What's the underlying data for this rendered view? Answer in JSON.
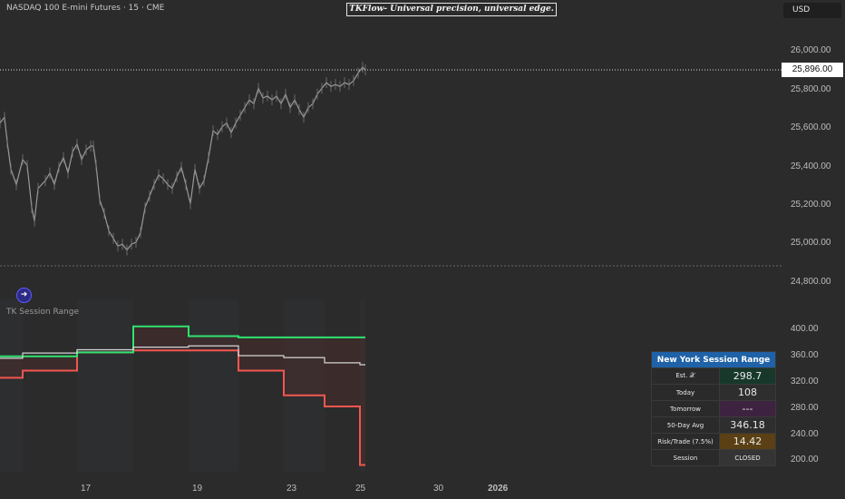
{
  "header": {
    "symbol": "NASDAQ 100 E-mini Futures · 15 · CME",
    "banner": "TKFlow- Universal precision, universal edge.",
    "currency": "USD"
  },
  "price_axis": {
    "current_price": "25,896.00",
    "labels": [
      "26,000.00",
      "25,800.00",
      "25,600.00",
      "25,400.00",
      "25,200.00",
      "25,000.00",
      "24,800.00"
    ]
  },
  "indicator": {
    "name": "TK Session Range",
    "icon": "arrow-circle-icon",
    "axis_labels": [
      "400.00",
      "360.00",
      "320.00",
      "280.00",
      "240.00",
      "200.00"
    ]
  },
  "time_axis": [
    "17",
    "19",
    "23",
    "25",
    "30",
    "2026"
  ],
  "table": {
    "title": "New York Session Range",
    "rows": [
      {
        "label": "Est. 𝒳",
        "value": "298.7"
      },
      {
        "label": "Today",
        "value": "108"
      },
      {
        "label": "Tomorrow",
        "value": "---"
      },
      {
        "label": "50-Day Avg",
        "value": "346.18"
      },
      {
        "label": "Risk/Trade (7.5%)",
        "value": "14.42"
      },
      {
        "label": "Session",
        "value": "CLOSED"
      }
    ]
  },
  "colors": {
    "background": "#2b2b2b",
    "price_line": "#9a9a9a",
    "upper_band": "#2ee36f",
    "lower_band": "#f2564f",
    "avg_line": "#d6d6d6",
    "table_header": "#1f62a8"
  },
  "chart_data": [
    {
      "type": "line",
      "title": "NASDAQ 100 E-mini Futures · 15 · CME",
      "ylim": [
        24800,
        26050
      ],
      "x": [
        0,
        5,
        8,
        12,
        18,
        25,
        30,
        35,
        38,
        42,
        50,
        55,
        60,
        65,
        70,
        75,
        80,
        85,
        90,
        95,
        100,
        103,
        106,
        110,
        115,
        120,
        125,
        130,
        135,
        140,
        145,
        150,
        155,
        160,
        165,
        170,
        175,
        180,
        185,
        190,
        195,
        200,
        205,
        210,
        215,
        220,
        225,
        230,
        235,
        240,
        245,
        250,
        255,
        260,
        265,
        270,
        275,
        280,
        285,
        290,
        295,
        300,
        305,
        310,
        315,
        320,
        325,
        330,
        335,
        340,
        345,
        350,
        355,
        360,
        365,
        370,
        375,
        380,
        385,
        390,
        395,
        400,
        403
      ],
      "values": [
        25620,
        25650,
        25520,
        25380,
        25300,
        25430,
        25400,
        25180,
        25110,
        25280,
        25320,
        25360,
        25300,
        25390,
        25440,
        25360,
        25470,
        25510,
        25430,
        25480,
        25500,
        25500,
        25400,
        25220,
        25150,
        25060,
        25020,
        24980,
        24990,
        24960,
        24990,
        25000,
        25050,
        25180,
        25240,
        25300,
        25350,
        25330,
        25300,
        25280,
        25340,
        25390,
        25300,
        25200,
        25380,
        25280,
        25320,
        25440,
        25580,
        25560,
        25600,
        25620,
        25570,
        25620,
        25660,
        25700,
        25740,
        25720,
        25800,
        25750,
        25760,
        25740,
        25760,
        25720,
        25770,
        25700,
        25740,
        25690,
        25650,
        25700,
        25720,
        25770,
        25800,
        25830,
        25810,
        25820,
        25810,
        25830,
        25820,
        25840,
        25880,
        25910,
        25896
      ]
    },
    {
      "type": "line",
      "title": "TK Session Range",
      "ylim": [
        190,
        410
      ],
      "series": [
        {
          "x": [
            0,
            25,
            25,
            85,
            85,
            147,
            147,
            208,
            208,
            263,
            263,
            313,
            313,
            358,
            358,
            397,
            397,
            403
          ],
          "values": [
            327,
            327,
            338,
            338,
            366,
            366,
            369,
            369,
            369,
            369,
            338,
            338,
            300,
            300,
            283,
            283,
            193,
            193
          ]
        },
        {
          "x": [
            0,
            25,
            25,
            85,
            85,
            147,
            147,
            208,
            208,
            263,
            263,
            313,
            313,
            358,
            358,
            397,
            397,
            403
          ],
          "values": [
            360,
            360,
            360,
            360,
            366,
            366,
            406,
            406,
            391,
            391,
            389,
            389,
            389,
            389,
            389,
            389,
            389,
            389
          ]
        },
        {
          "x": [
            0,
            25,
            25,
            85,
            85,
            147,
            147,
            208,
            208,
            263,
            263,
            313,
            313,
            358,
            358,
            397,
            397,
            403
          ],
          "values": [
            357,
            357,
            365,
            365,
            370,
            370,
            374,
            374,
            376,
            376,
            361,
            361,
            358,
            358,
            350,
            350,
            347,
            347
          ]
        }
      ]
    }
  ]
}
